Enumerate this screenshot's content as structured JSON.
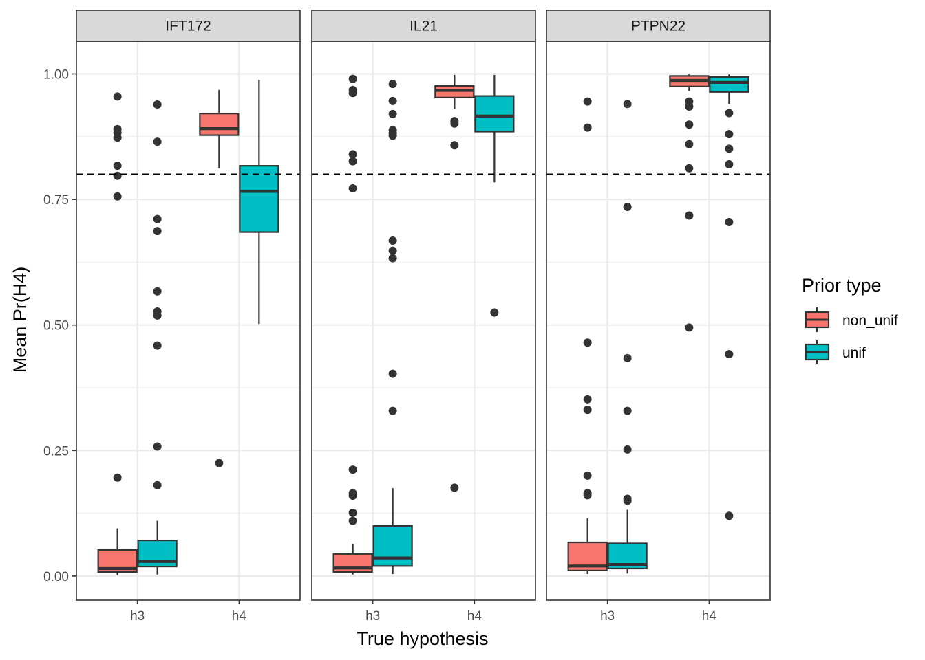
{
  "chart_data": {
    "type": "boxplot",
    "ylabel": "Mean Pr(H4)",
    "xlabel": "True hypothesis",
    "ylim": [
      -0.048,
      1.065
    ],
    "y_ticks": [
      0.0,
      0.25,
      0.5,
      0.75,
      1.0
    ],
    "y_tick_labels": [
      "0.00",
      "0.25",
      "0.50",
      "0.75",
      "1.00"
    ],
    "categories": [
      "h3",
      "h4"
    ],
    "reference_line": {
      "y": 0.8,
      "style": "dashed"
    },
    "legend": {
      "title": "Prior type",
      "placement": "right",
      "entries": [
        {
          "name": "non_unif",
          "color": "#F8766D"
        },
        {
          "name": "unif",
          "color": "#00BFC4"
        }
      ]
    },
    "facets": [
      {
        "label": "IFT172",
        "boxes": [
          {
            "category": "h3",
            "series": "non_unif",
            "lower_whisker": 0.002,
            "q1": 0.008,
            "median": 0.015,
            "q3": 0.052,
            "upper_whisker": 0.095,
            "outliers": [
              0.955,
              0.89,
              0.883,
              0.873,
              0.817,
              0.797,
              0.756,
              0.196
            ]
          },
          {
            "category": "h3",
            "series": "unif",
            "lower_whisker": 0.003,
            "q1": 0.019,
            "median": 0.029,
            "q3": 0.071,
            "upper_whisker": 0.11,
            "outliers": [
              0.939,
              0.865,
              0.711,
              0.687,
              0.567,
              0.527,
              0.519,
              0.459,
              0.258,
              0.181
            ]
          },
          {
            "category": "h4",
            "series": "non_unif",
            "lower_whisker": 0.812,
            "q1": 0.878,
            "median": 0.891,
            "q3": 0.921,
            "upper_whisker": 0.968,
            "outliers": [
              0.225
            ]
          },
          {
            "category": "h4",
            "series": "unif",
            "lower_whisker": 0.502,
            "q1": 0.685,
            "median": 0.766,
            "q3": 0.817,
            "upper_whisker": 0.988,
            "outliers": []
          }
        ]
      },
      {
        "label": "IL21",
        "boxes": [
          {
            "category": "h3",
            "series": "non_unif",
            "lower_whisker": 0.003,
            "q1": 0.008,
            "median": 0.016,
            "q3": 0.044,
            "upper_whisker": 0.064,
            "outliers": [
              0.99,
              0.968,
              0.962,
              0.84,
              0.826,
              0.772,
              0.212,
              0.165,
              0.16,
              0.126,
              0.11
            ]
          },
          {
            "category": "h3",
            "series": "unif",
            "lower_whisker": 0.004,
            "q1": 0.02,
            "median": 0.036,
            "q3": 0.1,
            "upper_whisker": 0.175,
            "outliers": [
              0.98,
              0.946,
              0.92,
              0.888,
              0.882,
              0.877,
              0.668,
              0.648,
              0.633,
              0.403,
              0.329
            ]
          },
          {
            "category": "h4",
            "series": "non_unif",
            "lower_whisker": 0.93,
            "q1": 0.953,
            "median": 0.967,
            "q3": 0.976,
            "upper_whisker": 0.998,
            "outliers": [
              0.906,
              0.901,
              0.858,
              0.176
            ]
          },
          {
            "category": "h4",
            "series": "unif",
            "lower_whisker": 0.784,
            "q1": 0.885,
            "median": 0.916,
            "q3": 0.956,
            "upper_whisker": 0.998,
            "outliers": [
              0.525
            ]
          }
        ]
      },
      {
        "label": "PTPN22",
        "boxes": [
          {
            "category": "h3",
            "series": "non_unif",
            "lower_whisker": 0.004,
            "q1": 0.011,
            "median": 0.02,
            "q3": 0.067,
            "upper_whisker": 0.115,
            "outliers": [
              0.945,
              0.893,
              0.465,
              0.352,
              0.331,
              0.2,
              0.165,
              0.161
            ]
          },
          {
            "category": "h3",
            "series": "unif",
            "lower_whisker": 0.005,
            "q1": 0.015,
            "median": 0.023,
            "q3": 0.065,
            "upper_whisker": 0.132,
            "outliers": [
              0.94,
              0.735,
              0.434,
              0.329,
              0.252,
              0.154,
              0.15
            ]
          },
          {
            "category": "h4",
            "series": "non_unif",
            "lower_whisker": 0.966,
            "q1": 0.975,
            "median": 0.987,
            "q3": 0.996,
            "upper_whisker": 0.999,
            "outliers": [
              0.945,
              0.935,
              0.899,
              0.86,
              0.812,
              0.718,
              0.495
            ]
          },
          {
            "category": "h4",
            "series": "unif",
            "lower_whisker": 0.94,
            "q1": 0.964,
            "median": 0.983,
            "q3": 0.994,
            "upper_whisker": 0.999,
            "outliers": [
              0.922,
              0.88,
              0.851,
              0.82,
              0.705,
              0.442,
              0.12
            ]
          }
        ]
      }
    ]
  }
}
